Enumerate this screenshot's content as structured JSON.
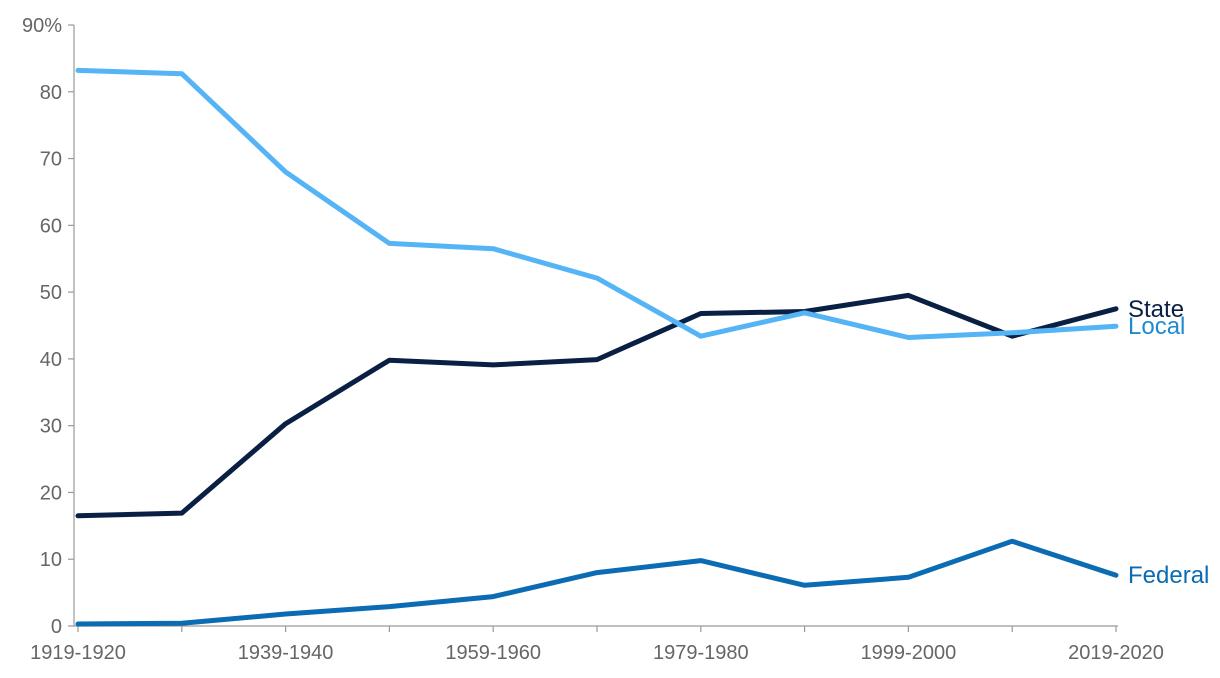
{
  "chart_data": {
    "type": "line",
    "title": "",
    "xlabel": "",
    "ylabel": "",
    "ylim": [
      0,
      90
    ],
    "y_ticks": [
      0,
      10,
      20,
      30,
      40,
      50,
      60,
      70,
      80,
      90
    ],
    "y_tick_labels": [
      "0",
      "10",
      "20",
      "30",
      "40",
      "50",
      "60",
      "70",
      "80",
      "90%"
    ],
    "x": [
      "1919-1920",
      "1929-1930",
      "1939-1940",
      "1949-1950",
      "1959-1960",
      "1969-1970",
      "1979-1980",
      "1989-1990",
      "1999-2000",
      "2009-2010",
      "2019-2020"
    ],
    "x_tick_labels": [
      "1919-1920",
      "1939-1940",
      "1959-1960",
      "1979-1980",
      "1999-2000",
      "2019-2020"
    ],
    "grid": false,
    "series": [
      {
        "name": "State",
        "label": "State",
        "color": "#0a1f44",
        "label_color": "#0a1f44",
        "values": [
          16.5,
          16.9,
          30.3,
          39.8,
          39.1,
          39.9,
          46.8,
          47.1,
          49.5,
          43.4,
          47.5
        ]
      },
      {
        "name": "Local",
        "label": "Local",
        "color": "#55b4f5",
        "label_color": "#1e8bd1",
        "values": [
          83.2,
          82.7,
          68.0,
          57.3,
          56.5,
          52.1,
          43.4,
          46.9,
          43.2,
          43.9,
          44.9
        ]
      },
      {
        "name": "Federal",
        "label": "Federal",
        "color": "#0b6bb3",
        "label_color": "#0b6bb3",
        "values": [
          0.3,
          0.4,
          1.8,
          2.9,
          4.4,
          8.0,
          9.8,
          6.1,
          7.3,
          12.7,
          7.6
        ]
      }
    ]
  }
}
